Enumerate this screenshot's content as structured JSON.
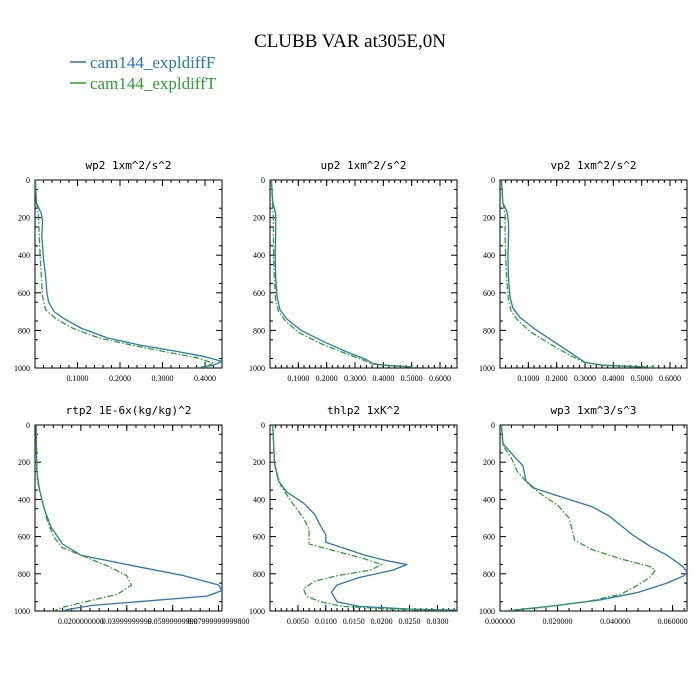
{
  "title": "CLUBB VAR at305E,0N",
  "colors": {
    "series_a": "#2878b5",
    "series_b": "#2ca02c",
    "axis": "#000000"
  },
  "legend": [
    {
      "label": "cam144_expldiffF",
      "color": "#2878b5",
      "dash": "solid"
    },
    {
      "label": "cam144_expldiffT",
      "color": "#2ca02c",
      "dash": "dash-dot"
    }
  ],
  "chart_data": [
    {
      "type": "line",
      "title": "wp2  1xm^2/s^2",
      "xlim": [
        0,
        0.44
      ],
      "ylim": [
        0,
        1000
      ],
      "y_inverted": true,
      "x_ticks": [
        "0.1000",
        "0.2000",
        "0.3000",
        "0.4000"
      ],
      "x_tick_values": [
        0.1,
        0.2,
        0.3,
        0.4
      ],
      "y_ticks": [
        "0",
        "200",
        "400",
        "600",
        "800",
        "1000"
      ],
      "series": [
        {
          "name": "cam144_expldiffF",
          "points": [
            [
              0.001,
              0
            ],
            [
              0.003,
              120
            ],
            [
              0.015,
              180
            ],
            [
              0.018,
              220
            ],
            [
              0.016,
              300
            ],
            [
              0.018,
              350
            ],
            [
              0.02,
              420
            ],
            [
              0.025,
              510
            ],
            [
              0.028,
              600
            ],
            [
              0.032,
              650
            ],
            [
              0.045,
              700
            ],
            [
              0.07,
              740
            ],
            [
              0.11,
              790
            ],
            [
              0.17,
              840
            ],
            [
              0.25,
              880
            ],
            [
              0.33,
              910
            ],
            [
              0.4,
              940
            ],
            [
              0.44,
              965
            ],
            [
              0.42,
              985
            ],
            [
              0.38,
              1000
            ]
          ]
        },
        {
          "name": "cam144_expldiffT",
          "points": [
            [
              0.001,
              0
            ],
            [
              0.003,
              120
            ],
            [
              0.008,
              180
            ],
            [
              0.01,
              300
            ],
            [
              0.012,
              400
            ],
            [
              0.015,
              520
            ],
            [
              0.018,
              620
            ],
            [
              0.025,
              690
            ],
            [
              0.05,
              740
            ],
            [
              0.09,
              790
            ],
            [
              0.15,
              840
            ],
            [
              0.23,
              880
            ],
            [
              0.31,
              915
            ],
            [
              0.38,
              945
            ],
            [
              0.42,
              975
            ],
            [
              0.4,
              995
            ],
            [
              0.39,
              1000
            ]
          ]
        }
      ]
    },
    {
      "type": "line",
      "title": "up2  1xm^2/s^2",
      "xlim": [
        0,
        0.66
      ],
      "ylim": [
        0,
        1000
      ],
      "y_inverted": true,
      "x_ticks": [
        "0.1000",
        "0.2000",
        "0.3000",
        "0.4000",
        "0.5000",
        "0.6000"
      ],
      "x_tick_values": [
        0.1,
        0.2,
        0.3,
        0.4,
        0.5,
        0.6
      ],
      "y_ticks": [
        "0",
        "200",
        "400",
        "600",
        "800",
        "1000"
      ],
      "series": [
        {
          "name": "cam144_expldiffF",
          "points": [
            [
              0.005,
              0
            ],
            [
              0.01,
              120
            ],
            [
              0.02,
              180
            ],
            [
              0.02,
              300
            ],
            [
              0.018,
              400
            ],
            [
              0.02,
              520
            ],
            [
              0.025,
              620
            ],
            [
              0.035,
              690
            ],
            [
              0.06,
              740
            ],
            [
              0.11,
              800
            ],
            [
              0.19,
              860
            ],
            [
              0.28,
              920
            ],
            [
              0.34,
              955
            ],
            [
              0.36,
              975
            ],
            [
              0.4,
              985
            ],
            [
              0.46,
              990
            ],
            [
              0.5,
              995
            ]
          ]
        },
        {
          "name": "cam144_expldiffT",
          "points": [
            [
              0.005,
              0
            ],
            [
              0.008,
              120
            ],
            [
              0.012,
              200
            ],
            [
              0.012,
              300
            ],
            [
              0.013,
              420
            ],
            [
              0.016,
              540
            ],
            [
              0.02,
              640
            ],
            [
              0.03,
              700
            ],
            [
              0.055,
              750
            ],
            [
              0.1,
              810
            ],
            [
              0.18,
              870
            ],
            [
              0.27,
              925
            ],
            [
              0.33,
              958
            ],
            [
              0.36,
              978
            ],
            [
              0.42,
              988
            ],
            [
              0.48,
              993
            ],
            [
              0.52,
              997
            ]
          ]
        }
      ]
    },
    {
      "type": "line",
      "title": "vp2  1xm^2/s^2",
      "xlim": [
        0,
        0.66
      ],
      "ylim": [
        0,
        1000
      ],
      "y_inverted": true,
      "x_ticks": [
        "0.1000",
        "0.2000",
        "0.3000",
        "0.4000",
        "0.5000",
        "0.6000"
      ],
      "x_tick_values": [
        0.1,
        0.2,
        0.3,
        0.4,
        0.5,
        0.6
      ],
      "y_ticks": [
        "0",
        "200",
        "400",
        "600",
        "800",
        "1000"
      ],
      "series": [
        {
          "name": "cam144_expldiffF",
          "points": [
            [
              0.005,
              0
            ],
            [
              0.01,
              120
            ],
            [
              0.025,
              170
            ],
            [
              0.03,
              230
            ],
            [
              0.03,
              300
            ],
            [
              0.028,
              400
            ],
            [
              0.03,
              520
            ],
            [
              0.035,
              620
            ],
            [
              0.045,
              680
            ],
            [
              0.07,
              730
            ],
            [
              0.12,
              790
            ],
            [
              0.19,
              860
            ],
            [
              0.26,
              930
            ],
            [
              0.3,
              970
            ],
            [
              0.36,
              985
            ],
            [
              0.44,
              990
            ],
            [
              0.52,
              995
            ]
          ]
        },
        {
          "name": "cam144_expldiffT",
          "points": [
            [
              0.005,
              0
            ],
            [
              0.01,
              120
            ],
            [
              0.018,
              180
            ],
            [
              0.018,
              300
            ],
            [
              0.02,
              420
            ],
            [
              0.024,
              540
            ],
            [
              0.03,
              640
            ],
            [
              0.04,
              700
            ],
            [
              0.065,
              750
            ],
            [
              0.11,
              810
            ],
            [
              0.18,
              875
            ],
            [
              0.25,
              935
            ],
            [
              0.3,
              972
            ],
            [
              0.38,
              987
            ],
            [
              0.46,
              992
            ],
            [
              0.55,
              997
            ]
          ]
        }
      ]
    },
    {
      "type": "line",
      "title": "rtp2  1E-6x(kg/kg)^2",
      "xlim": [
        0,
        0.0815
      ],
      "ylim": [
        0,
        1000
      ],
      "y_inverted": true,
      "x_ticks": [
        "0.0200000000",
        "0.03999999999",
        "0.05999999999",
        "0.07999999999800"
      ],
      "x_tick_values": [
        0.02,
        0.04,
        0.06,
        0.08
      ],
      "y_ticks": [
        "0",
        "200",
        "400",
        "600",
        "800",
        "1000"
      ],
      "series": [
        {
          "name": "cam144_expldiffF",
          "points": [
            [
              0.0005,
              0
            ],
            [
              0.0008,
              250
            ],
            [
              0.002,
              350
            ],
            [
              0.004,
              450
            ],
            [
              0.007,
              550
            ],
            [
              0.012,
              640
            ],
            [
              0.02,
              700
            ],
            [
              0.04,
              750
            ],
            [
              0.065,
              810
            ],
            [
              0.08,
              860
            ],
            [
              0.0815,
              890
            ],
            [
              0.075,
              920
            ],
            [
              0.045,
              950
            ],
            [
              0.025,
              970
            ],
            [
              0.015,
              990
            ],
            [
              0.012,
              1000
            ]
          ]
        },
        {
          "name": "cam144_expldiffT",
          "points": [
            [
              0.0005,
              0
            ],
            [
              0.001,
              300
            ],
            [
              0.003,
              400
            ],
            [
              0.005,
              500
            ],
            [
              0.008,
              600
            ],
            [
              0.012,
              660
            ],
            [
              0.02,
              700
            ],
            [
              0.032,
              760
            ],
            [
              0.04,
              810
            ],
            [
              0.042,
              860
            ],
            [
              0.036,
              910
            ],
            [
              0.022,
              950
            ],
            [
              0.012,
              980
            ],
            [
              0.008,
              1000
            ]
          ]
        }
      ]
    },
    {
      "type": "line",
      "title": "thlp2  1xK^2",
      "xlim": [
        0,
        0.0335
      ],
      "ylim": [
        0,
        1000
      ],
      "y_inverted": true,
      "x_ticks": [
        "0.0050",
        "0.0100",
        "0.0150",
        "0.0200",
        "0.0250",
        "0.0300"
      ],
      "x_tick_values": [
        0.005,
        0.01,
        0.015,
        0.02,
        0.025,
        0.03
      ],
      "y_ticks": [
        "0",
        "200",
        "400",
        "600",
        "800",
        "1000"
      ],
      "series": [
        {
          "name": "cam144_expldiffF",
          "points": [
            [
              0.0005,
              0
            ],
            [
              0.0008,
              200
            ],
            [
              0.0015,
              300
            ],
            [
              0.003,
              360
            ],
            [
              0.006,
              420
            ],
            [
              0.008,
              480
            ],
            [
              0.009,
              540
            ],
            [
              0.01,
              590
            ],
            [
              0.01,
              630
            ],
            [
              0.013,
              660
            ],
            [
              0.017,
              700
            ],
            [
              0.021,
              730
            ],
            [
              0.0245,
              750
            ],
            [
              0.022,
              780
            ],
            [
              0.016,
              820
            ],
            [
              0.012,
              860
            ],
            [
              0.011,
              900
            ],
            [
              0.012,
              950
            ],
            [
              0.016,
              975
            ],
            [
              0.025,
              990
            ],
            [
              0.0335,
              995
            ]
          ]
        },
        {
          "name": "cam144_expldiffT",
          "points": [
            [
              0.0005,
              0
            ],
            [
              0.0008,
              220
            ],
            [
              0.002,
              330
            ],
            [
              0.004,
              420
            ],
            [
              0.006,
              500
            ],
            [
              0.007,
              560
            ],
            [
              0.007,
              600
            ],
            [
              0.007,
              640
            ],
            [
              0.012,
              680
            ],
            [
              0.017,
              720
            ],
            [
              0.02,
              750
            ],
            [
              0.018,
              780
            ],
            [
              0.012,
              810
            ],
            [
              0.008,
              840
            ],
            [
              0.006,
              880
            ],
            [
              0.0065,
              920
            ],
            [
              0.009,
              950
            ],
            [
              0.013,
              975
            ],
            [
              0.022,
              990
            ],
            [
              0.032,
              997
            ]
          ]
        }
      ]
    },
    {
      "type": "line",
      "title": "wp3  1xm^3/s^3",
      "xlim": [
        0,
        0.065
      ],
      "ylim": [
        0,
        1000
      ],
      "y_inverted": true,
      "x_ticks": [
        "0.000000",
        "0.020000",
        "0.040000",
        "0.060000"
      ],
      "x_tick_values": [
        0.0,
        0.02,
        0.04,
        0.06
      ],
      "y_ticks": [
        "0",
        "200",
        "400",
        "600",
        "800",
        "1000"
      ],
      "series": [
        {
          "name": "cam144_expldiffF",
          "points": [
            [
              0.0005,
              0
            ],
            [
              0.001,
              100
            ],
            [
              0.005,
              170
            ],
            [
              0.008,
              220
            ],
            [
              0.009,
              300
            ],
            [
              0.012,
              340
            ],
            [
              0.02,
              380
            ],
            [
              0.032,
              440
            ],
            [
              0.038,
              490
            ],
            [
              0.042,
              540
            ],
            [
              0.046,
              590
            ],
            [
              0.052,
              650
            ],
            [
              0.058,
              700
            ],
            [
              0.0635,
              760
            ],
            [
              0.065,
              790
            ],
            [
              0.064,
              810
            ],
            [
              0.058,
              850
            ],
            [
              0.048,
              900
            ],
            [
              0.035,
              940
            ],
            [
              0.02,
              970
            ],
            [
              0.008,
              990
            ],
            [
              0.002,
              1000
            ]
          ]
        },
        {
          "name": "cam144_expldiffT",
          "points": [
            [
              0.0005,
              0
            ],
            [
              0.001,
              110
            ],
            [
              0.004,
              180
            ],
            [
              0.006,
              250
            ],
            [
              0.01,
              320
            ],
            [
              0.015,
              380
            ],
            [
              0.02,
              430
            ],
            [
              0.024,
              500
            ],
            [
              0.025,
              560
            ],
            [
              0.026,
              620
            ],
            [
              0.032,
              670
            ],
            [
              0.042,
              720
            ],
            [
              0.052,
              760
            ],
            [
              0.054,
              780
            ],
            [
              0.052,
              820
            ],
            [
              0.048,
              860
            ],
            [
              0.042,
              910
            ],
            [
              0.03,
              950
            ],
            [
              0.015,
              980
            ],
            [
              0.005,
              995
            ],
            [
              0.001,
              1000
            ]
          ]
        }
      ]
    }
  ]
}
